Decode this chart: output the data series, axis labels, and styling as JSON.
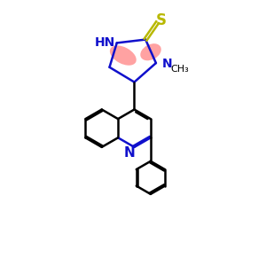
{
  "bg_color": "#ffffff",
  "bond_color": "#000000",
  "blue": "#1010cc",
  "yellow": "#b8b800",
  "highlight_red": "#ff6060",
  "figsize": [
    3.0,
    3.0
  ],
  "dpi": 100,
  "lw": 1.8,
  "r_q": 0.72,
  "r_ph": 0.63,
  "xlim": [
    0,
    10
  ],
  "ylim": [
    0,
    10
  ]
}
